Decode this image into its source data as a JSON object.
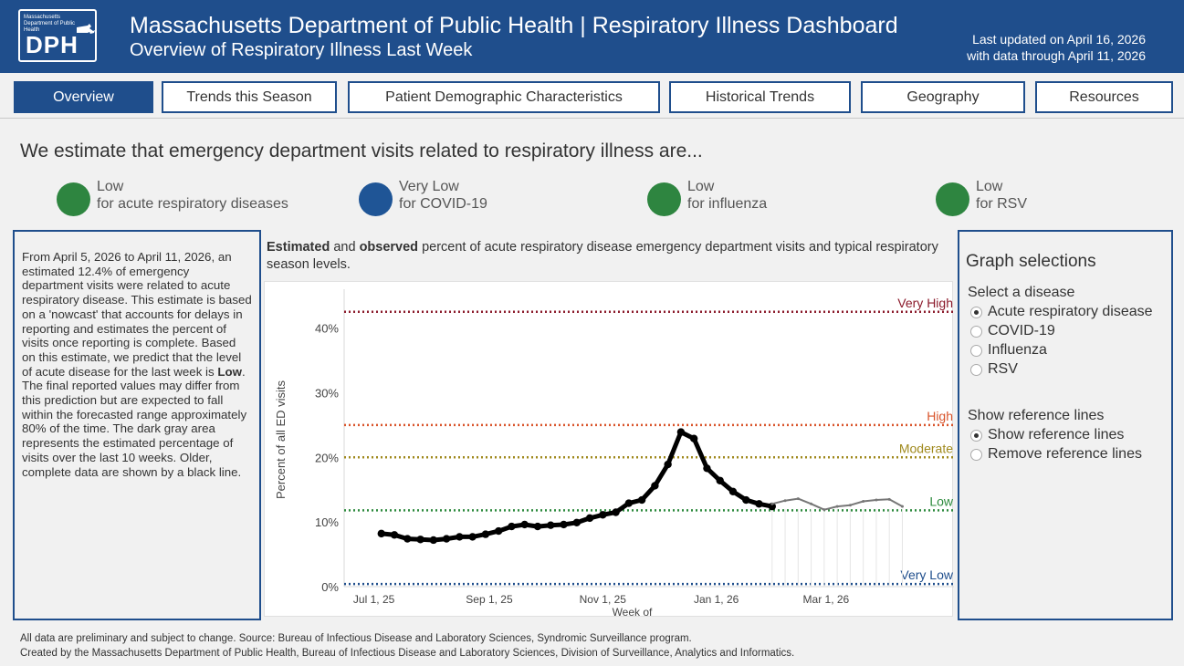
{
  "header": {
    "logo_small": "Massachusetts Department of Public Health",
    "logo_text": "DPH",
    "title": "Massachusetts Department of Public Health | Respiratory Illness Dashboard",
    "subtitle": "Overview of Respiratory Illness Last Week",
    "updated_line1": "Last updated on April 16, 2026",
    "updated_line2": "with data through April 11, 2026",
    "brand_color": "#1f4e8c"
  },
  "tabs": [
    {
      "label": "Overview",
      "active": true
    },
    {
      "label": "Trends this Season",
      "active": false
    },
    {
      "label": "Patient Demographic Characteristics",
      "active": false
    },
    {
      "label": "Historical Trends",
      "active": false
    },
    {
      "label": "Geography",
      "active": false
    },
    {
      "label": "Resources",
      "active": false
    }
  ],
  "headline": "We estimate that emergency department visits related to respiratory illness are...",
  "statuses": [
    {
      "level": "Low",
      "disease": "for acute respiratory diseases",
      "color": "#2e8540"
    },
    {
      "level": "Very Low",
      "disease": "for COVID-19",
      "color": "#1f5596"
    },
    {
      "level": "Low",
      "disease": "for influenza",
      "color": "#2e8540"
    },
    {
      "level": "Low",
      "disease": "for RSV",
      "color": "#2e8540"
    }
  ],
  "summary": {
    "part1": "From April 5, 2026 to April 11, 2026, an estimated 12.4% of emergency department visits were related to acute respiratory disease.  This estimate is based on a 'nowcast' that accounts for delays in reporting and estimates the percent of visits once reporting is complete.  Based on this estimate, we predict that the level of acute disease for the last week is ",
    "level": "Low",
    "part2": ".  The final reported values may differ from this prediction but are expected to fall within the forecasted range approximately 80% of the time. The dark gray area represents the estimated percentage of visits over the last 10 weeks.  Older, complete data are shown by a black line."
  },
  "chart_title": {
    "bold1": "Estimated",
    "mid": " and ",
    "bold2": "observed",
    "rest": " percent of acute respiratory disease emergency department visits and typical respiratory season levels."
  },
  "graph_selections": {
    "title": "Graph selections",
    "disease_label": "Select a disease",
    "diseases": [
      {
        "label": "Acute respiratory disease",
        "selected": true
      },
      {
        "label": "COVID-19",
        "selected": false
      },
      {
        "label": "Influenza",
        "selected": false
      },
      {
        "label": "RSV",
        "selected": false
      }
    ],
    "ref_label": "Show reference lines",
    "ref_options": [
      {
        "label": "Show reference lines",
        "selected": true
      },
      {
        "label": "Remove reference lines",
        "selected": false
      }
    ]
  },
  "footer": {
    "line1": "All data are preliminary and subject to change. Source: Bureau of Infectious Disease and Laboratory Sciences, Syndromic Surveillance program.",
    "line2": "Created by the Massachusetts Department of Public Health, Bureau of Infectious Disease and Laboratory Sciences, Division of Surveillance, Analytics and Informatics."
  },
  "chart_data": {
    "type": "line",
    "xlabel": "Week of",
    "ylabel": "Percent of all ED visits",
    "ylim": [
      0,
      46
    ],
    "yticks": [
      0,
      10,
      20,
      30,
      40
    ],
    "ytick_labels": [
      "0%",
      "10%",
      "20%",
      "30%",
      "40%"
    ],
    "xticks": [
      "2025-07-01",
      "2025-09-01",
      "2025-11-01",
      "2026-01-01",
      "2026-03-01"
    ],
    "xtick_labels": [
      "Jul 1, 25",
      "Sep 1, 25",
      "Nov 1, 25",
      "Jan 1, 26",
      "Mar 1, 26"
    ],
    "xlim": [
      "2025-06-15",
      "2026-04-25"
    ],
    "reference_lines": [
      {
        "label": "Very High",
        "value": 42.5,
        "color": "#8b1a2b"
      },
      {
        "label": "High",
        "value": 25.0,
        "color": "#d9542b"
      },
      {
        "label": "Moderate",
        "value": 20.0,
        "color": "#a08a1e"
      },
      {
        "label": "Low",
        "value": 11.8,
        "color": "#2e8b3e"
      },
      {
        "label": "Very Low",
        "value": 0.4,
        "color": "#1f4e8c"
      }
    ],
    "series": [
      {
        "style": "observed",
        "color": "#000000",
        "x": [
          "2025-07-05",
          "2025-07-12",
          "2025-07-19",
          "2025-07-26",
          "2025-08-02",
          "2025-08-09",
          "2025-08-16",
          "2025-08-23",
          "2025-08-30",
          "2025-09-06",
          "2025-09-13",
          "2025-09-20",
          "2025-09-27",
          "2025-10-04",
          "2025-10-11",
          "2025-10-18",
          "2025-10-25",
          "2025-11-01",
          "2025-11-08",
          "2025-11-15",
          "2025-11-22",
          "2025-11-29",
          "2025-12-06",
          "2025-12-13",
          "2025-12-20",
          "2025-12-27",
          "2026-01-03",
          "2026-01-10",
          "2026-01-17",
          "2026-01-24",
          "2026-01-31"
        ],
        "y": [
          8.2,
          8.0,
          7.4,
          7.3,
          7.2,
          7.4,
          7.7,
          7.7,
          8.1,
          8.6,
          9.3,
          9.6,
          9.3,
          9.5,
          9.6,
          9.9,
          10.6,
          11.1,
          11.5,
          12.9,
          13.4,
          15.6,
          18.9,
          23.9,
          22.9,
          18.3,
          16.4,
          14.7,
          13.4,
          12.8,
          12.4
        ]
      },
      {
        "style": "estimated",
        "color": "#777777",
        "x": [
          "2026-01-31",
          "2026-02-07",
          "2026-02-14",
          "2026-02-21",
          "2026-02-28",
          "2026-03-07",
          "2026-03-14",
          "2026-03-21",
          "2026-03-28",
          "2026-04-04",
          "2026-04-11"
        ],
        "y": [
          12.8,
          13.3,
          13.6,
          12.8,
          11.9,
          12.4,
          12.6,
          13.2,
          13.4,
          13.5,
          12.4
        ]
      }
    ]
  }
}
